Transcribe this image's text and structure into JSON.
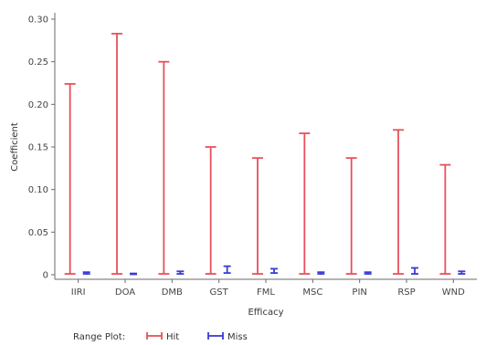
{
  "chart_data": {
    "type": "range",
    "xlabel": "Efficacy",
    "ylabel": "Coefficient",
    "categories": [
      "IIRI",
      "DOA",
      "DMB",
      "GST",
      "FML",
      "MSC",
      "PIN",
      "RSP",
      "WND"
    ],
    "ylim": [
      0,
      0.3
    ],
    "yticks": [
      0,
      0.05,
      0.1,
      0.15,
      0.2,
      0.25,
      0.3
    ],
    "ytick_labels": [
      "0",
      "0.05",
      "0.10",
      "0.15",
      "0.20",
      "0.25",
      "0.30"
    ],
    "grid": false,
    "legend_position": "bottom-left",
    "legend_title": "Range Plot:",
    "series": [
      {
        "name": "Hit",
        "color": "#e8505b",
        "low": [
          0.001,
          0.001,
          0.001,
          0.001,
          0.001,
          0.001,
          0.001,
          0.001,
          0.001
        ],
        "high": [
          0.224,
          0.283,
          0.25,
          0.15,
          0.137,
          0.166,
          0.137,
          0.17,
          0.129
        ]
      },
      {
        "name": "Miss",
        "color": "#3a3ad6",
        "low": [
          0.001,
          0.0005,
          0.001,
          0.002,
          0.002,
          0.001,
          0.001,
          0.001,
          0.001
        ],
        "high": [
          0.003,
          0.0015,
          0.004,
          0.01,
          0.007,
          0.003,
          0.003,
          0.008,
          0.004
        ]
      }
    ]
  }
}
